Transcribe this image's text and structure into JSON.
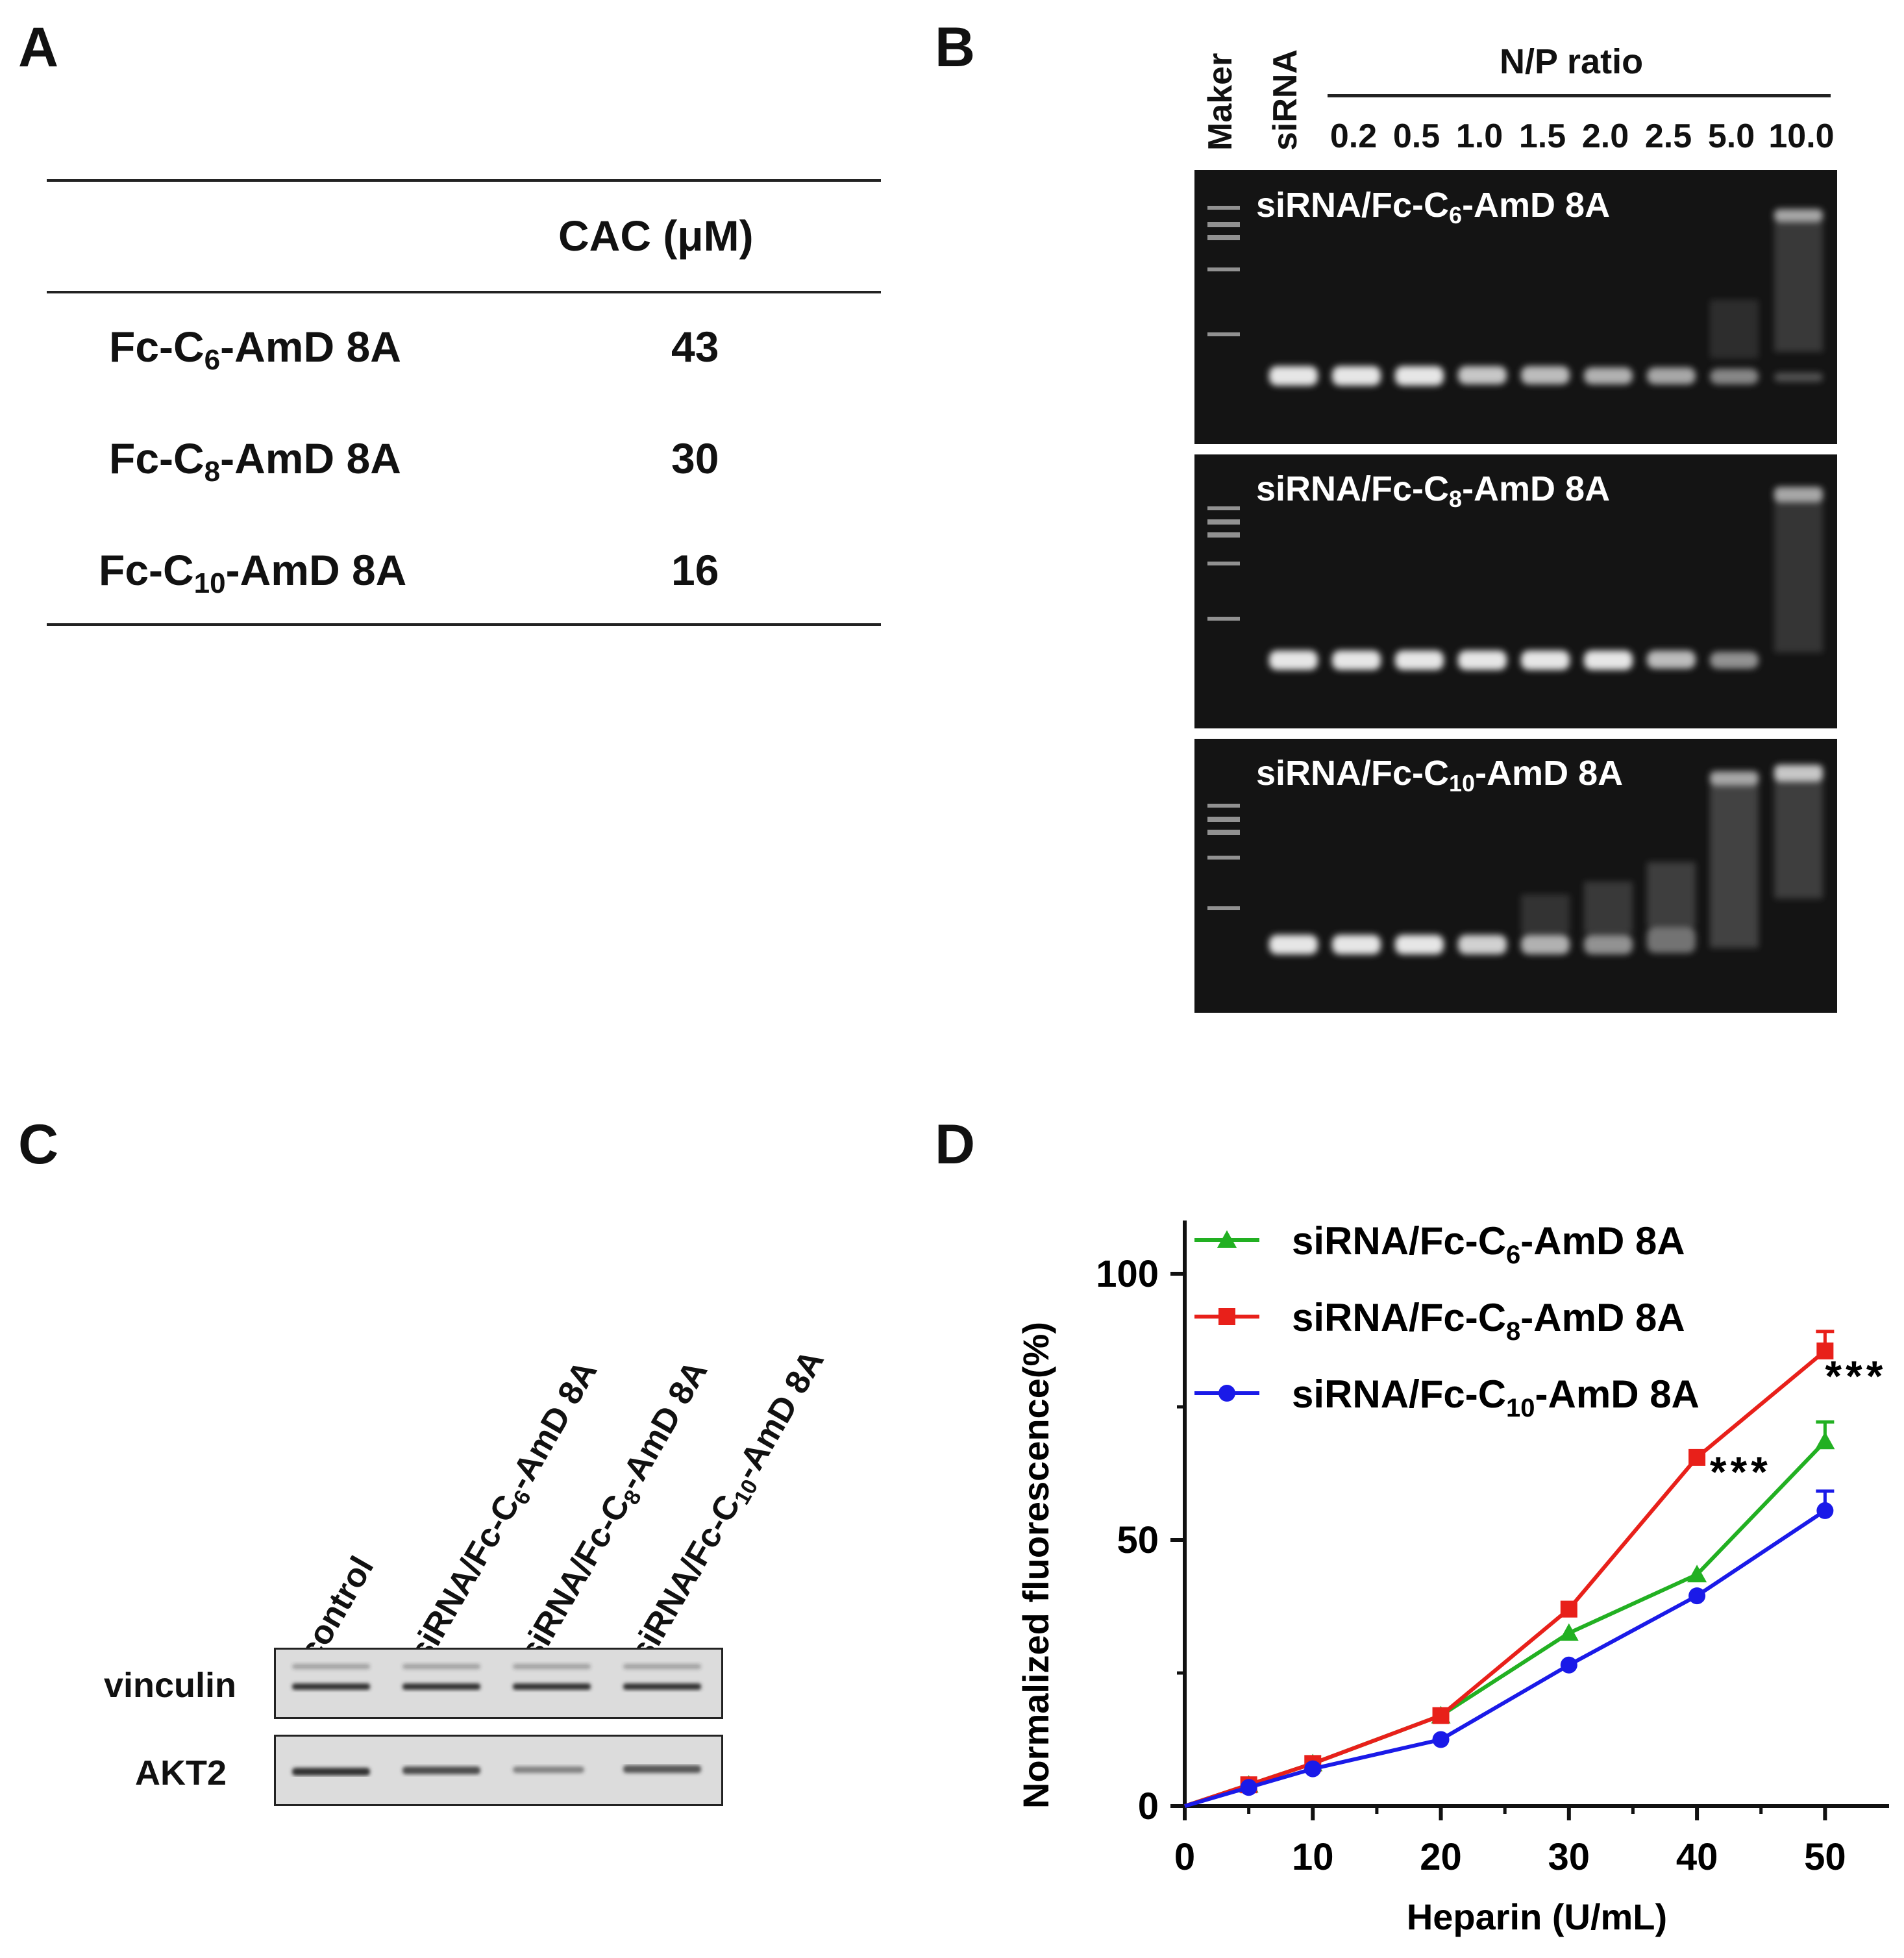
{
  "panels": {
    "a": "A",
    "b": "B",
    "c": "C",
    "d": "D"
  },
  "table": {
    "header": "CAC (μM)",
    "rows": [
      {
        "prefix": "Fc-C",
        "sub": "6",
        "suffix": "-AmD 8A",
        "value": "43"
      },
      {
        "prefix": "Fc-C",
        "sub": "8",
        "suffix": "-AmD 8A",
        "value": "30"
      },
      {
        "prefix": "Fc-C",
        "sub": "10",
        "suffix": "-AmD 8A",
        "value": "16"
      }
    ]
  },
  "gel": {
    "marker_label": "Maker",
    "sirna_label": "siRNA",
    "np_title": "N/P ratio",
    "np_values": [
      "0.2",
      "0.5",
      "1.0",
      "1.5",
      "2.0",
      "2.5",
      "5.0",
      "10.0"
    ],
    "panels": [
      {
        "prefix": "siRNA/Fc-C",
        "sub": "6",
        "suffix": "-AmD 8A"
      },
      {
        "prefix": "siRNA/Fc-C",
        "sub": "8",
        "suffix": "-AmD 8A"
      },
      {
        "prefix": "siRNA/Fc-C",
        "sub": "10",
        "suffix": "-AmD 8A"
      }
    ]
  },
  "blot": {
    "lanes": [
      {
        "prefix": "control",
        "sub": "",
        "suffix": ""
      },
      {
        "prefix": "siRNA/Fc-C",
        "sub": "6",
        "suffix": "-AmD 8A"
      },
      {
        "prefix": "siRNA/Fc-C",
        "sub": "8",
        "suffix": "-AmD 8A"
      },
      {
        "prefix": "siRNA/Fc-C",
        "sub": "10",
        "suffix": "-AmD 8A"
      }
    ],
    "rows": [
      "vinculin",
      "AKT2"
    ]
  },
  "chart_data": {
    "type": "line",
    "title": "",
    "xlabel": "Heparin (U/mL)",
    "ylabel": "Normalized fluorescence(%)",
    "xlim": [
      0,
      55
    ],
    "ylim": [
      0,
      110
    ],
    "xticks": [
      "0",
      "10",
      "20",
      "30",
      "40",
      "50"
    ],
    "yticks": [
      "0",
      "50",
      "100"
    ],
    "legend_position": "top-left",
    "series": [
      {
        "name_prefix": "siRNA/Fc-C",
        "name_sub": "6",
        "name_suffix": "-AmD 8A",
        "color": "#22b022",
        "marker": "triangle",
        "points": [
          [
            0,
            0
          ],
          [
            5,
            4
          ],
          [
            10,
            8
          ],
          [
            20,
            17
          ],
          [
            30,
            32.5
          ],
          [
            40,
            43.5
          ],
          [
            50,
            68.5
          ]
        ]
      },
      {
        "name_prefix": "siRNA/Fc-C",
        "name_sub": "8",
        "name_suffix": "-AmD 8A",
        "color": "#e8201a",
        "marker": "square",
        "points": [
          [
            0,
            0
          ],
          [
            5,
            4
          ],
          [
            10,
            8
          ],
          [
            20,
            17
          ],
          [
            30,
            37
          ],
          [
            40,
            65.5
          ],
          [
            50,
            85.5
          ]
        ]
      },
      {
        "name_prefix": "siRNA/Fc-C",
        "name_sub": "10",
        "name_suffix": "-AmD 8A",
        "color": "#1a1ae8",
        "marker": "circle",
        "points": [
          [
            0,
            0
          ],
          [
            5,
            3.5
          ],
          [
            10,
            7
          ],
          [
            20,
            12.5
          ],
          [
            30,
            26.5
          ],
          [
            40,
            39.5
          ],
          [
            50,
            55.5
          ]
        ]
      }
    ],
    "annotations": [
      {
        "text": "***",
        "x": 41,
        "y": 60
      },
      {
        "text": "***",
        "x": 50,
        "y": 78
      }
    ]
  }
}
